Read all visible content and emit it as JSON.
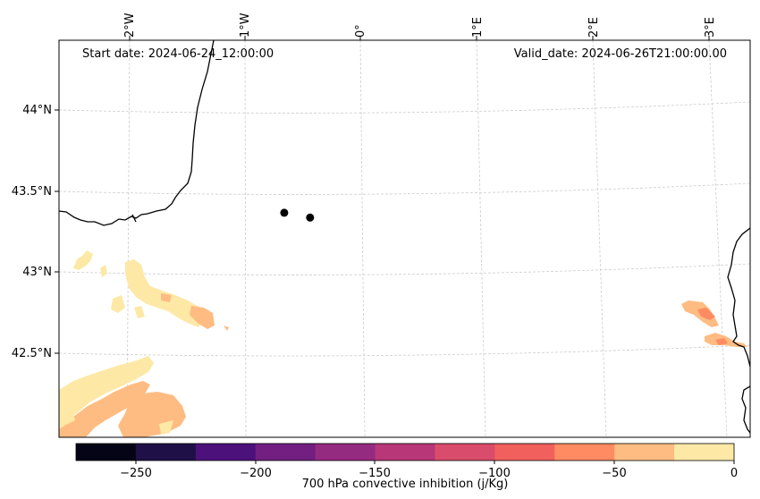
{
  "map": {
    "start_date": "Start date: 2024-06-24_12:00:00",
    "valid_date": "Valid_date: 2024-06-26T21:00:00.00",
    "lon_labels": [
      "2°W",
      "1°W",
      "0°",
      "1°E",
      "2°E",
      "3°E"
    ],
    "lat_labels": [
      "44°N",
      "43.5°N",
      "43°N",
      "42.5°N"
    ],
    "markers": [
      {
        "lon": -0.65,
        "lat": 43.39
      },
      {
        "lon": -0.43,
        "lat": 43.36
      }
    ]
  },
  "colorbar": {
    "label": "700 hPa convective inhibition (j/Kg)",
    "tick_labels": [
      "−250",
      "−200",
      "−150",
      "−100",
      "−50",
      "0"
    ],
    "colormap": "magma",
    "colors": [
      "#050416",
      "#1f1147",
      "#4d117c",
      "#721f81",
      "#952b80",
      "#b73779",
      "#da4c6b",
      "#f1605d",
      "#fe8b62",
      "#febc82",
      "#fde8a6"
    ]
  }
}
